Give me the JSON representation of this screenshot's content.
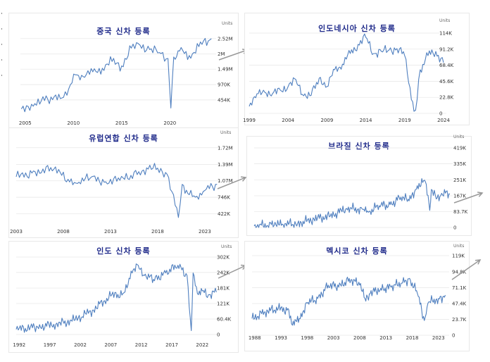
{
  "chart_data": [
    {
      "type": "line",
      "title": "중국 신차 등록",
      "units": "Units",
      "x_ticks": [
        "2005",
        "2010",
        "2015",
        "2020"
      ],
      "x_range": [
        2004.5,
        2024.5
      ],
      "y_ticks": [
        "454K",
        "970K",
        "1.49M",
        "2M",
        "2.52M"
      ],
      "y_tick_values": [
        454,
        970,
        1490,
        2000,
        2520
      ],
      "ylim": [
        0,
        2800
      ],
      "series": [
        {
          "name": "China",
          "x": [
            2004.6,
            2006,
            2008,
            2008.8,
            2009.5,
            2010.2,
            2011,
            2012,
            2013,
            2014,
            2015,
            2016,
            2016.9,
            2017.9,
            2018.9,
            2019.8,
            2020.1,
            2020.4,
            2021,
            2022,
            2023,
            2024.3
          ],
          "values": [
            150,
            330,
            560,
            520,
            820,
            1300,
            1240,
            1400,
            1520,
            1750,
            1600,
            2200,
            2300,
            2150,
            2050,
            1850,
            180,
            1900,
            2100,
            1950,
            2250,
            2520
          ]
        }
      ]
    },
    {
      "type": "line",
      "title": "인도네시아 신차 등록",
      "units": "Units",
      "x_ticks": [
        "1999",
        "2004",
        "2009",
        "2014",
        "2019",
        "2024"
      ],
      "x_range": [
        1999,
        2024
      ],
      "y_ticks": [
        "0",
        "22.8K",
        "45.6K",
        "68.4K",
        "91.2K",
        "114K"
      ],
      "y_tick_values": [
        0,
        22.8,
        45.6,
        68.4,
        91.2,
        114
      ],
      "ylim": [
        0,
        114
      ],
      "series": [
        {
          "name": "Indonesia",
          "x": [
            1999,
            2000,
            2001,
            2002,
            2003,
            2004,
            2005,
            2006,
            2006.8,
            2008,
            2009,
            2010,
            2011,
            2012,
            2013,
            2014,
            2015,
            2016,
            2017,
            2018,
            2019,
            2020.2,
            2020.6,
            2021,
            2022,
            2023,
            2024
          ],
          "values": [
            10,
            28,
            30,
            28,
            33,
            38,
            48,
            25,
            25,
            50,
            38,
            62,
            70,
            85,
            98,
            108,
            85,
            88,
            90,
            92,
            82,
            3,
            20,
            62,
            82,
            88,
            72
          ]
        }
      ]
    },
    {
      "type": "line",
      "title": "유럽연합 신차 등록",
      "units": "Units",
      "x_ticks": [
        "2003",
        "2008",
        "2013",
        "2018",
        "2023"
      ],
      "x_range": [
        2003,
        2024.5
      ],
      "y_ticks": [
        "422K",
        "746K",
        "1.07M",
        "1.39M",
        "1.72M"
      ],
      "y_tick_values": [
        422,
        746,
        1070,
        1390,
        1720
      ],
      "ylim": [
        250,
        1800
      ],
      "series": [
        {
          "name": "EU",
          "x": [
            2003,
            2005,
            2007,
            2008.5,
            2009.5,
            2011,
            2012.5,
            2014,
            2016,
            2017,
            2018,
            2019,
            2020.2,
            2020.6,
            2021.2,
            2022,
            2023,
            2024.3
          ],
          "values": [
            1150,
            1250,
            1300,
            1100,
            1020,
            1150,
            1050,
            1080,
            1250,
            1300,
            1320,
            1200,
            350,
            1000,
            820,
            750,
            880,
            1000
          ]
        }
      ]
    },
    {
      "type": "line",
      "title": "브라질 신차 등록",
      "units": "Units",
      "x_ticks": [],
      "x_range": [
        1988,
        2024
      ],
      "y_ticks": [
        "0",
        "83.7K",
        "167K",
        "251K",
        "335K",
        "419K"
      ],
      "y_tick_values": [
        0,
        83.7,
        167,
        251,
        335,
        419
      ],
      "ylim": [
        0,
        419
      ],
      "series": [
        {
          "name": "Brazil",
          "x": [
            1988,
            1992,
            1996,
            1999,
            2002,
            2005,
            2008,
            2009,
            2011,
            2013,
            2015,
            2016.5,
            2018,
            2019.5,
            2020.3,
            2020.6,
            2021.5,
            2022.5,
            2024
          ],
          "values": [
            8,
            14,
            22,
            45,
            60,
            100,
            95,
            80,
            115,
            120,
            160,
            140,
            220,
            240,
            90,
            200,
            150,
            180,
            175
          ]
        }
      ]
    },
    {
      "type": "line",
      "title": "인도 신차 등록",
      "units": "Units",
      "x_ticks": [
        "1992",
        "1997",
        "2002",
        "2007",
        "2012",
        "2017",
        "2022"
      ],
      "x_range": [
        1991.5,
        2024.5
      ],
      "y_ticks": [
        "0",
        "60.4K",
        "121K",
        "181K",
        "242K",
        "302K"
      ],
      "y_tick_values": [
        0,
        60.4,
        121,
        181,
        242,
        302
      ],
      "ylim": [
        0,
        302
      ],
      "series": [
        {
          "name": "India",
          "x": [
            1991.5,
            1995,
            1998,
            2001,
            2004,
            2007,
            2009,
            2010.5,
            2011.5,
            2012.5,
            2014,
            2016,
            2018,
            2019.5,
            2020.2,
            2020.5,
            2021.2,
            2022,
            2023,
            2024.3
          ],
          "values": [
            20,
            30,
            40,
            55,
            95,
            150,
            160,
            240,
            270,
            230,
            215,
            240,
            270,
            230,
            15,
            240,
            160,
            170,
            155,
            165
          ]
        }
      ]
    },
    {
      "type": "line",
      "title": "멕시코 신차 등록",
      "units": "Units",
      "x_ticks": [
        "1988",
        "1993",
        "1998",
        "2003",
        "2008",
        "2013",
        "2018",
        "2023"
      ],
      "x_range": [
        1987.5,
        2024.5
      ],
      "y_ticks": [
        "0",
        "23.7K",
        "47.4K",
        "71.1K",
        "94.8K",
        "119K"
      ],
      "y_tick_values": [
        0,
        23.7,
        47.4,
        71.1,
        94.8,
        119
      ],
      "ylim": [
        0,
        119
      ],
      "series": [
        {
          "name": "Mexico",
          "x": [
            1987.5,
            1990,
            1992.5,
            1994.5,
            1995.2,
            1996.5,
            1998,
            2000,
            2002,
            2004,
            2006,
            2008,
            2009,
            2010,
            2012,
            2014,
            2016,
            2017.5,
            2019,
            2020.3,
            2021,
            2023,
            2024.3
          ],
          "values": [
            25,
            35,
            40,
            38,
            15,
            25,
            48,
            55,
            75,
            72,
            85,
            75,
            55,
            62,
            70,
            72,
            78,
            85,
            62,
            22,
            48,
            55,
            60
          ]
        }
      ]
    }
  ]
}
